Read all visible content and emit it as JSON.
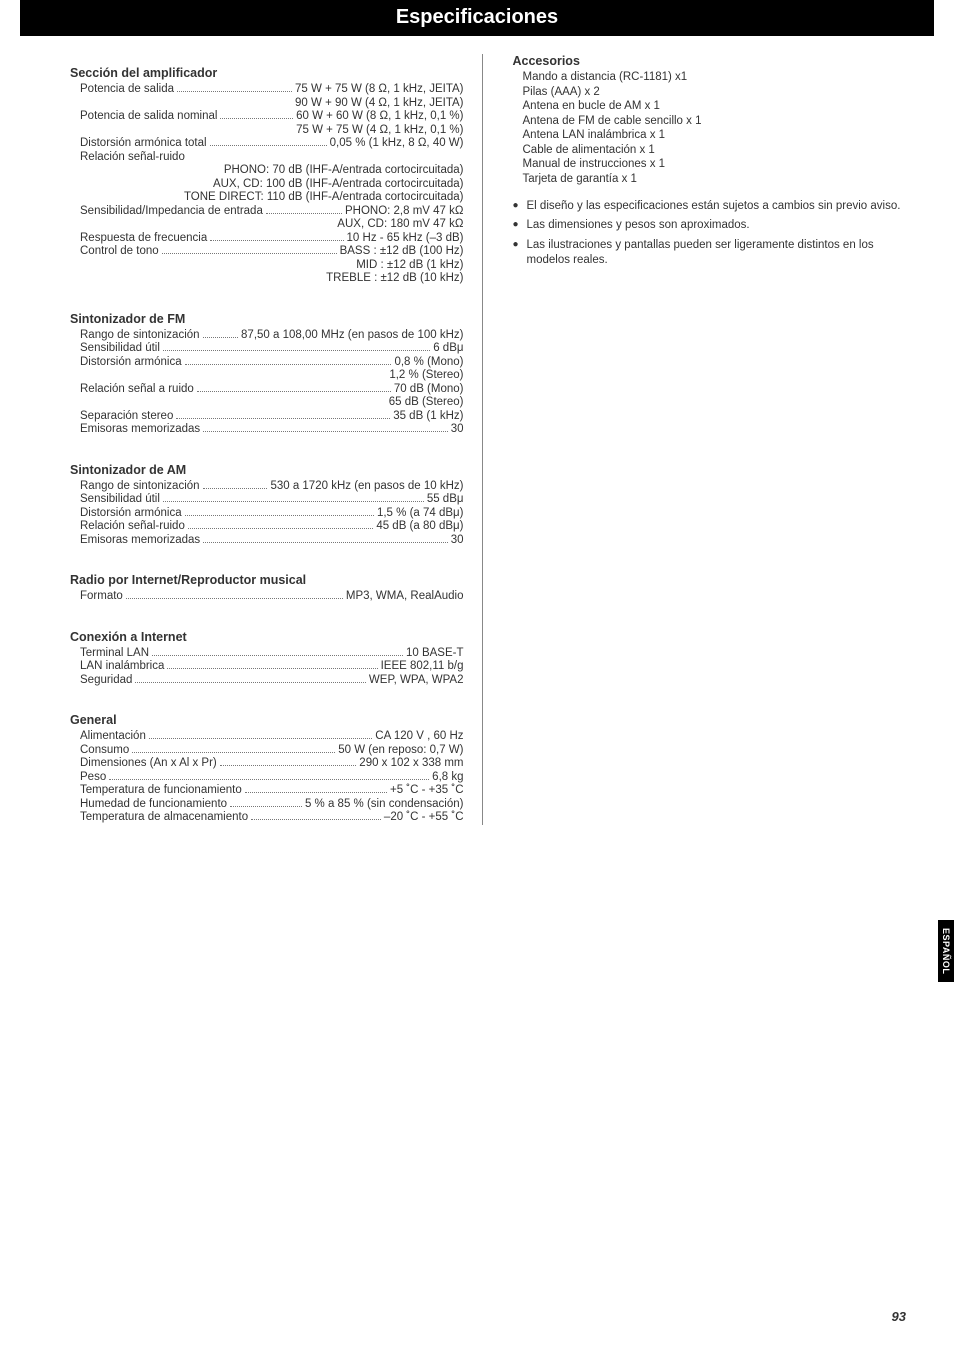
{
  "header": {
    "title": "Especificaciones"
  },
  "side_tab": "ESPAÑOL",
  "page_number": "93",
  "left": {
    "amp": {
      "title": "Sección del amplificador",
      "rows": [
        {
          "label": "Potencia de salida",
          "value": "75 W + 75 W (8 Ω, 1 kHz, JEITA)"
        },
        {
          "right": "90 W + 90 W (4 Ω, 1 kHz, JEITA)"
        },
        {
          "label": "Potencia de salida nominal",
          "value": "60 W + 60 W (8 Ω, 1 kHz, 0,1 %)"
        },
        {
          "right": "75 W + 75 W (4 Ω, 1 kHz, 0,1 %)"
        },
        {
          "label": "Distorsión armónica total",
          "value": "0,05 % (1 kHz, 8 Ω, 40 W)"
        },
        {
          "plain": "Relación señal-ruido"
        },
        {
          "right": "PHONO: 70 dB (IHF-A/entrada cortocircuitada)"
        },
        {
          "right": "AUX, CD: 100 dB (IHF-A/entrada cortocircuitada)"
        },
        {
          "right": "TONE DIRECT: 110 dB (IHF-A/entrada cortocircuitada)"
        },
        {
          "label": "Sensibilidad/Impedancia de entrada",
          "value": "PHONO: 2,8 mV 47 kΩ"
        },
        {
          "right": "AUX, CD: 180 mV 47 kΩ"
        },
        {
          "label": "Respuesta de frecuencia",
          "value": "10 Hz - 65 kHz (–3 dB)"
        },
        {
          "label": "Control de tono",
          "value": "BASS : ±12 dB (100 Hz)"
        },
        {
          "right": "MID : ±12 dB (1 kHz)"
        },
        {
          "right": "TREBLE : ±12 dB (10 kHz)"
        }
      ]
    },
    "fm": {
      "title": "Sintonizador de FM",
      "rows": [
        {
          "label": "Rango de sintonización",
          "value": "87,50 a 108,00 MHz (en pasos de 100 kHz)"
        },
        {
          "label": "Sensibilidad útil",
          "value": "6 dBμ"
        },
        {
          "label": "Distorsión armónica",
          "value": "0,8 % (Mono)"
        },
        {
          "right": "1,2 % (Stereo)"
        },
        {
          "label": "Relación señal a ruido",
          "value": "70 dB (Mono)"
        },
        {
          "right": "65 dB (Stereo)"
        },
        {
          "label": "Separación stereo",
          "value": "35 dB (1 kHz)"
        },
        {
          "label": "Emisoras memorizadas",
          "value": "30"
        }
      ]
    },
    "am": {
      "title": "Sintonizador de AM",
      "rows": [
        {
          "label": "Rango de sintonización",
          "value": "530 a 1720 kHz (en pasos de 10 kHz)"
        },
        {
          "label": "Sensibilidad útil",
          "value": "55 dBμ"
        },
        {
          "label": "Distorsión armónica",
          "value": "1,5 % (a 74 dBμ)"
        },
        {
          "label": "Relación señal-ruido",
          "value": "45 dB (a 80 dBμ)"
        },
        {
          "label": "Emisoras memorizadas",
          "value": "30"
        }
      ]
    },
    "radio": {
      "title": "Radio por Internet/Reproductor musical",
      "rows": [
        {
          "label": "Formato",
          "value": "MP3, WMA, RealAudio"
        }
      ]
    },
    "internet": {
      "title": "Conexión a Internet",
      "rows": [
        {
          "label": "Terminal LAN",
          "value": "10 BASE-T"
        },
        {
          "label": "LAN inalámbrica",
          "value": "IEEE 802,11 b/g"
        },
        {
          "label": "Seguridad",
          "value": "WEP, WPA, WPA2"
        }
      ]
    },
    "general": {
      "title": "General",
      "rows": [
        {
          "label": "Alimentación",
          "value": "CA 120 V , 60 Hz"
        },
        {
          "label": "Consumo",
          "value": "50 W (en reposo: 0,7 W)"
        },
        {
          "label": "Dimensiones (An x Al x Pr)",
          "value": "290 x 102 x 338 mm"
        },
        {
          "label": "Peso",
          "value": "6,8 kg"
        },
        {
          "label": "Temperatura de funcionamiento",
          "value": "+5 ˚C - +35 ˚C"
        },
        {
          "label": "Humedad de funcionamiento",
          "value": "5 % a 85 % (sin condensación)"
        },
        {
          "label": "Temperatura de almacenamiento",
          "value": "–20 ˚C - +55 ˚C"
        }
      ]
    }
  },
  "right": {
    "accesorios": {
      "title": "Accesorios",
      "items": [
        "Mando a distancia (RC-1181) x1",
        "Pilas (AAA) x 2",
        "Antena en bucle de AM x 1",
        "Antena de FM de cable sencillo x 1",
        "Antena LAN inalámbrica x 1",
        "Cable de alimentación x 1",
        "Manual de instrucciones x 1",
        "Tarjeta de garantía x 1"
      ]
    },
    "bullets": [
      "El diseño y las especificaciones están sujetos a cambios sin previo aviso.",
      "Las dimensiones y pesos son aproximados.",
      "Las ilustraciones y pantallas pueden ser ligeramente distintos en los modelos reales."
    ]
  }
}
